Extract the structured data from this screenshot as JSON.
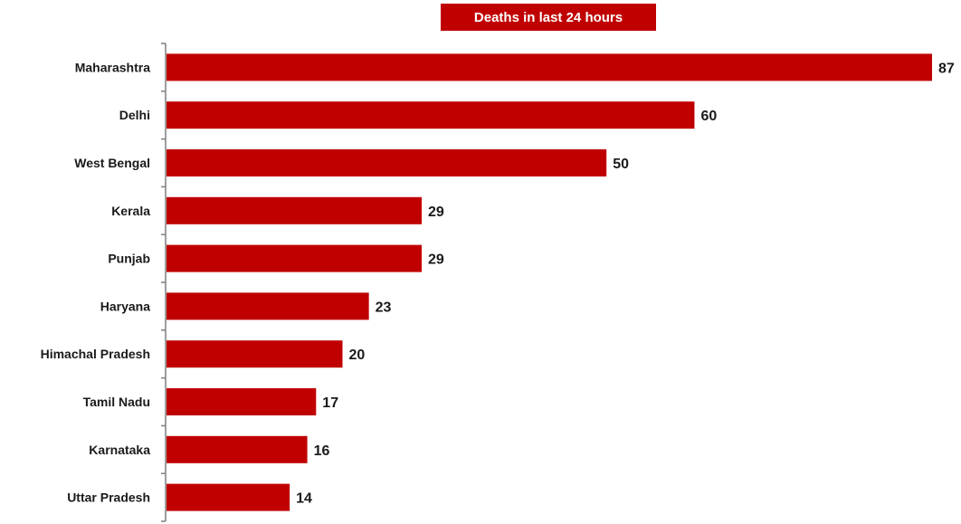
{
  "chart_data": {
    "type": "bar",
    "orientation": "horizontal",
    "title": "Deaths in last 24 hours",
    "categories": [
      "Maharashtra",
      "Delhi",
      "West Bengal",
      "Kerala",
      "Punjab",
      "Haryana",
      "Himachal Pradesh",
      "Tamil Nadu",
      "Karnataka",
      "Uttar Pradesh"
    ],
    "values": [
      87,
      60,
      50,
      29,
      29,
      23,
      20,
      17,
      16,
      14
    ],
    "xlim": [
      0,
      87
    ],
    "grid": false,
    "data_labels": true
  },
  "colors": {
    "bar": "#c00000",
    "title_background": "#c00000",
    "title_text": "#ffffff",
    "axis": "#7f7f7f",
    "label_text": "#1a1a1a"
  }
}
